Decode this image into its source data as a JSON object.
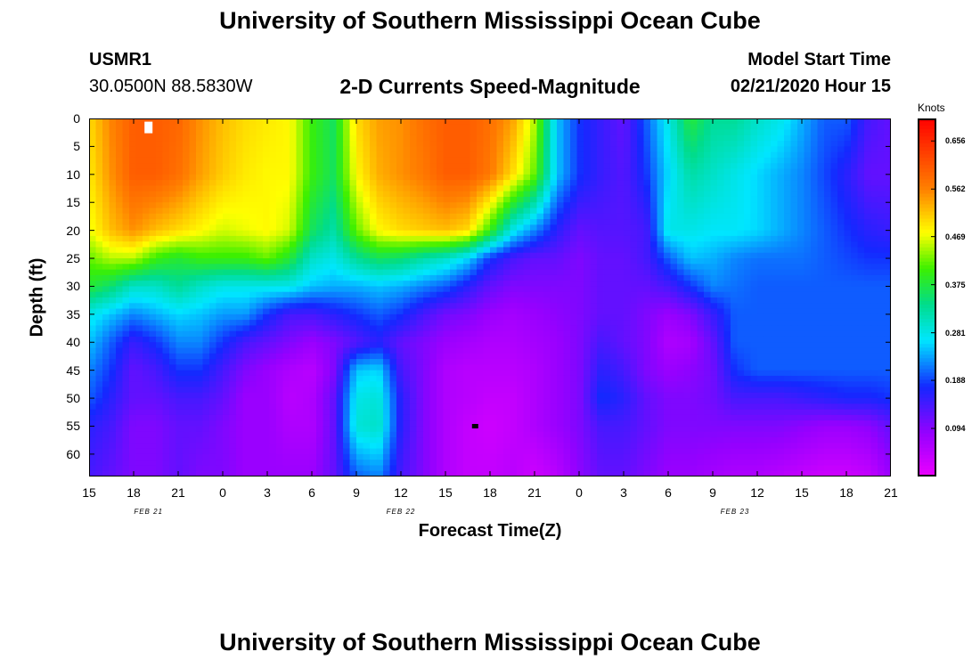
{
  "header": {
    "title": "University of Southern Mississippi Ocean Cube",
    "station": "USMR1",
    "coords": "30.0500N 88.5830W",
    "subtitle": "2-D Currents Speed-Magnitude",
    "model_start_label": "Model Start Time",
    "model_start_value": "02/21/2020 Hour 15"
  },
  "footer": {
    "title": "University of Southern Mississippi Ocean Cube"
  },
  "colors": {
    "white_marker": "#ffffff",
    "black_marker": "#000000"
  },
  "chart_data": {
    "type": "heatmap",
    "title": "2-D Currents Speed-Magnitude",
    "xlabel": "Forecast Time(Z)",
    "ylabel": "Depth (ft)",
    "x_ticks": [
      "15",
      "18",
      "21",
      "0",
      "3",
      "6",
      "9",
      "12",
      "15",
      "18",
      "21",
      "0",
      "3",
      "6",
      "9",
      "12",
      "15",
      "18",
      "21"
    ],
    "x_range_hours": [
      0,
      54
    ],
    "date_labels": [
      {
        "text": "FEB 21",
        "hour": 4
      },
      {
        "text": "FEB 22",
        "hour": 21
      },
      {
        "text": "FEB 23",
        "hour": 43.5
      }
    ],
    "y_ticks": [
      "0",
      "5",
      "10",
      "15",
      "20",
      "25",
      "30",
      "35",
      "40",
      "45",
      "50",
      "55",
      "60"
    ],
    "y_range_ft": [
      0,
      64
    ],
    "colorbar": {
      "title": "Knots",
      "ticks": [
        "0.656",
        "0.562",
        "0.469",
        "0.375",
        "0.281",
        "0.188",
        "0.094"
      ],
      "range": [
        0.0,
        0.7
      ]
    },
    "markers": [
      {
        "kind": "white",
        "hour": 4,
        "depth_ft": 1.6
      },
      {
        "kind": "black",
        "hour": 26,
        "depth_ft": 55
      }
    ],
    "grid_hours": [
      0,
      1.5,
      3,
      4.5,
      6,
      7.5,
      9,
      10.5,
      12,
      13.5,
      15,
      16.5,
      18,
      19.5,
      21,
      22.5,
      24,
      25.5,
      27,
      28.5,
      30,
      31.5,
      33,
      34.5,
      36,
      37.5,
      39,
      40.5,
      42,
      43.5,
      45,
      46.5,
      48,
      49.5,
      51,
      52.5,
      54
    ],
    "grid_depths_ft": [
      0,
      10,
      20,
      25,
      30,
      35,
      40,
      45,
      50,
      55,
      64
    ],
    "values_knots": [
      [
        0.5,
        0.56,
        0.6,
        0.6,
        0.59,
        0.55,
        0.52,
        0.5,
        0.49,
        0.48,
        0.4,
        0.36,
        0.5,
        0.54,
        0.55,
        0.58,
        0.6,
        0.6,
        0.58,
        0.54,
        0.45,
        0.25,
        0.18,
        0.15,
        0.12,
        0.2,
        0.28,
        0.38,
        0.33,
        0.33,
        0.3,
        0.28,
        0.24,
        0.2,
        0.2,
        0.14,
        0.12
      ],
      [
        0.49,
        0.55,
        0.6,
        0.6,
        0.58,
        0.54,
        0.51,
        0.49,
        0.48,
        0.48,
        0.4,
        0.36,
        0.48,
        0.53,
        0.55,
        0.57,
        0.6,
        0.6,
        0.57,
        0.5,
        0.42,
        0.25,
        0.18,
        0.15,
        0.13,
        0.18,
        0.26,
        0.32,
        0.3,
        0.28,
        0.26,
        0.24,
        0.22,
        0.19,
        0.16,
        0.12,
        0.12
      ],
      [
        0.47,
        0.52,
        0.55,
        0.52,
        0.5,
        0.48,
        0.46,
        0.47,
        0.48,
        0.46,
        0.36,
        0.32,
        0.42,
        0.48,
        0.5,
        0.51,
        0.52,
        0.5,
        0.4,
        0.28,
        0.22,
        0.16,
        0.12,
        0.13,
        0.13,
        0.14,
        0.28,
        0.28,
        0.27,
        0.27,
        0.26,
        0.24,
        0.22,
        0.2,
        0.18,
        0.16,
        0.15
      ],
      [
        0.42,
        0.45,
        0.45,
        0.4,
        0.38,
        0.4,
        0.4,
        0.4,
        0.42,
        0.38,
        0.3,
        0.28,
        0.33,
        0.36,
        0.35,
        0.32,
        0.3,
        0.26,
        0.18,
        0.14,
        0.12,
        0.12,
        0.1,
        0.12,
        0.12,
        0.14,
        0.2,
        0.25,
        0.24,
        0.22,
        0.21,
        0.21,
        0.21,
        0.2,
        0.19,
        0.18,
        0.18
      ],
      [
        0.38,
        0.35,
        0.3,
        0.3,
        0.33,
        0.3,
        0.28,
        0.28,
        0.28,
        0.28,
        0.25,
        0.24,
        0.24,
        0.25,
        0.24,
        0.22,
        0.2,
        0.16,
        0.12,
        0.1,
        0.1,
        0.1,
        0.1,
        0.12,
        0.12,
        0.12,
        0.14,
        0.18,
        0.22,
        0.21,
        0.2,
        0.2,
        0.2,
        0.2,
        0.2,
        0.2,
        0.2
      ],
      [
        0.28,
        0.25,
        0.22,
        0.24,
        0.26,
        0.25,
        0.23,
        0.23,
        0.18,
        0.14,
        0.14,
        0.16,
        0.18,
        0.2,
        0.18,
        0.14,
        0.11,
        0.1,
        0.08,
        0.07,
        0.08,
        0.09,
        0.1,
        0.12,
        0.12,
        0.1,
        0.08,
        0.1,
        0.15,
        0.2,
        0.2,
        0.2,
        0.2,
        0.2,
        0.2,
        0.2,
        0.2
      ],
      [
        0.25,
        0.2,
        0.15,
        0.18,
        0.22,
        0.22,
        0.18,
        0.14,
        0.12,
        0.1,
        0.08,
        0.1,
        0.13,
        0.16,
        0.12,
        0.1,
        0.08,
        0.07,
        0.06,
        0.06,
        0.07,
        0.08,
        0.1,
        0.14,
        0.12,
        0.1,
        0.06,
        0.07,
        0.12,
        0.2,
        0.2,
        0.2,
        0.2,
        0.2,
        0.2,
        0.2,
        0.2
      ],
      [
        0.22,
        0.18,
        0.12,
        0.14,
        0.18,
        0.18,
        0.14,
        0.1,
        0.08,
        0.06,
        0.05,
        0.1,
        0.25,
        0.26,
        0.14,
        0.1,
        0.06,
        0.05,
        0.05,
        0.05,
        0.06,
        0.08,
        0.1,
        0.16,
        0.14,
        0.1,
        0.08,
        0.09,
        0.11,
        0.18,
        0.2,
        0.2,
        0.2,
        0.2,
        0.2,
        0.2,
        0.2
      ],
      [
        0.2,
        0.16,
        0.12,
        0.12,
        0.14,
        0.14,
        0.12,
        0.08,
        0.08,
        0.05,
        0.06,
        0.12,
        0.28,
        0.29,
        0.16,
        0.1,
        0.06,
        0.05,
        0.04,
        0.04,
        0.06,
        0.08,
        0.1,
        0.18,
        0.16,
        0.12,
        0.1,
        0.1,
        0.11,
        0.14,
        0.14,
        0.14,
        0.15,
        0.16,
        0.17,
        0.17,
        0.18
      ],
      [
        0.16,
        0.14,
        0.1,
        0.1,
        0.12,
        0.12,
        0.1,
        0.08,
        0.08,
        0.06,
        0.06,
        0.12,
        0.29,
        0.3,
        0.16,
        0.1,
        0.06,
        0.04,
        0.03,
        0.04,
        0.06,
        0.08,
        0.1,
        0.14,
        0.14,
        0.12,
        0.1,
        0.1,
        0.1,
        0.1,
        0.1,
        0.1,
        0.09,
        0.08,
        0.08,
        0.09,
        0.12
      ],
      [
        0.14,
        0.12,
        0.1,
        0.1,
        0.12,
        0.1,
        0.1,
        0.08,
        0.08,
        0.08,
        0.08,
        0.12,
        0.2,
        0.22,
        0.14,
        0.1,
        0.06,
        0.04,
        0.04,
        0.05,
        0.03,
        0.05,
        0.09,
        0.12,
        0.12,
        0.1,
        0.08,
        0.08,
        0.07,
        0.06,
        0.06,
        0.05,
        0.04,
        0.03,
        0.03,
        0.04,
        0.08
      ]
    ]
  }
}
